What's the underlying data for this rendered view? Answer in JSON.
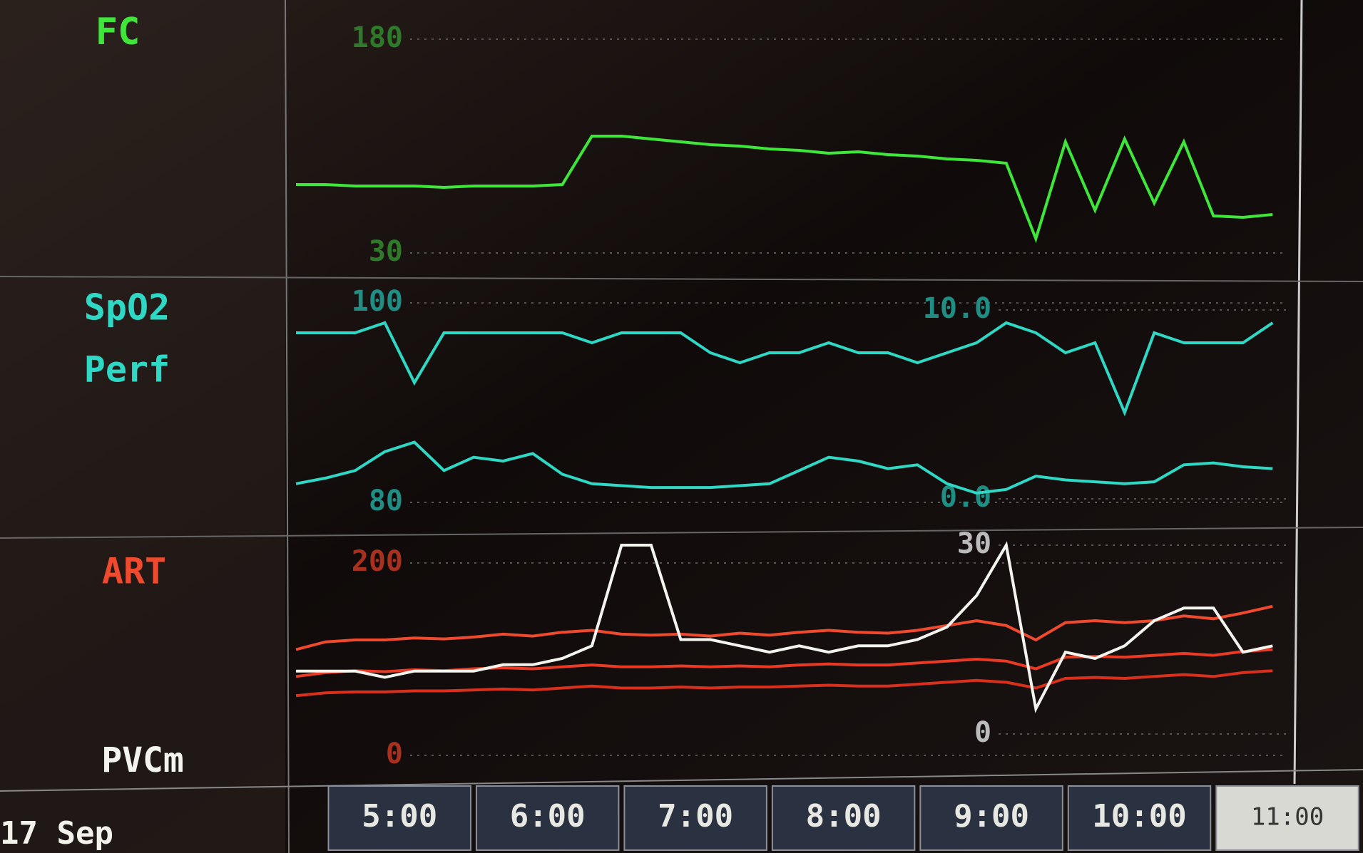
{
  "date": "17 Sep",
  "chart_data": [
    {
      "type": "line",
      "x": [
        4.3,
        4.5,
        4.7,
        4.9,
        5.1,
        5.3,
        5.5,
        5.7,
        5.9,
        6.1,
        6.3,
        6.5,
        6.7,
        6.9,
        7.1,
        7.3,
        7.5,
        7.7,
        7.9,
        8.1,
        8.3,
        8.5,
        8.7,
        8.9,
        9.1,
        9.3,
        9.5,
        9.7,
        9.9,
        10.1,
        10.3,
        10.5,
        10.7,
        10.9
      ],
      "xlim": [
        4.3,
        11.0
      ],
      "ylim": [
        30,
        180
      ],
      "yticks": [
        30,
        180
      ],
      "series": [
        {
          "name": "FC",
          "color": "#3ee63a",
          "values": [
            78,
            78,
            77,
            77,
            77,
            76,
            77,
            77,
            77,
            78,
            112,
            112,
            110,
            108,
            106,
            105,
            103,
            102,
            100,
            101,
            99,
            98,
            96,
            95,
            93,
            40,
            108,
            60,
            110,
            65,
            108,
            56,
            55,
            57
          ]
        }
      ]
    },
    {
      "type": "line",
      "x": [
        4.3,
        4.5,
        4.7,
        4.9,
        5.1,
        5.3,
        5.5,
        5.7,
        5.9,
        6.1,
        6.3,
        6.5,
        6.7,
        6.9,
        7.1,
        7.3,
        7.5,
        7.7,
        7.9,
        8.1,
        8.3,
        8.5,
        8.7,
        8.9,
        9.1,
        9.3,
        9.5,
        9.7,
        9.9,
        10.1,
        10.3,
        10.5,
        10.7,
        10.9
      ],
      "xlim": [
        4.3,
        11.0
      ],
      "ylim": [
        80,
        100
      ],
      "yticks": [
        80,
        100
      ],
      "y2lim": [
        0,
        10
      ],
      "y2ticks": [
        {
          "value": 0,
          "label": "0.0"
        },
        {
          "value": 10,
          "label": "10.0"
        }
      ],
      "series": [
        {
          "name": "SpO2",
          "color": "#2fd8c4",
          "values": [
            97,
            97,
            97,
            98,
            92,
            97,
            97,
            97,
            97,
            97,
            96,
            97,
            97,
            97,
            95,
            94,
            95,
            95,
            96,
            95,
            95,
            94,
            95,
            96,
            98,
            97,
            95,
            96,
            89,
            97,
            96,
            96,
            96,
            98
          ]
        },
        {
          "name": "Perf",
          "color": "#2fd8c4",
          "axis": "y2",
          "values": [
            0.8,
            1.1,
            1.5,
            2.5,
            3.0,
            1.5,
            2.2,
            2.0,
            2.4,
            1.3,
            0.8,
            0.7,
            0.6,
            0.6,
            0.6,
            0.7,
            0.8,
            1.5,
            2.2,
            2.0,
            1.6,
            1.8,
            0.8,
            0.3,
            0.5,
            1.2,
            1.0,
            0.9,
            0.8,
            0.9,
            1.8,
            1.9,
            1.7,
            1.6
          ]
        }
      ]
    },
    {
      "type": "line",
      "x": [
        4.3,
        4.5,
        4.7,
        4.9,
        5.1,
        5.3,
        5.5,
        5.7,
        5.9,
        6.1,
        6.3,
        6.5,
        6.7,
        6.9,
        7.1,
        7.3,
        7.5,
        7.7,
        7.9,
        8.1,
        8.3,
        8.5,
        8.7,
        8.9,
        9.1,
        9.3,
        9.5,
        9.7,
        9.9,
        10.1,
        10.3,
        10.5,
        10.7,
        10.9
      ],
      "xlim": [
        4.3,
        11.0
      ],
      "xticks": [
        {
          "value": 5,
          "label": "5:00"
        },
        {
          "value": 6,
          "label": "6:00"
        },
        {
          "value": 7,
          "label": "7:00"
        },
        {
          "value": 8,
          "label": "8:00"
        },
        {
          "value": 9,
          "label": "9:00"
        },
        {
          "value": 10,
          "label": "10:00"
        },
        {
          "value": 11,
          "label": "11:00"
        }
      ],
      "ylim": [
        0,
        200
      ],
      "yticks": [
        0,
        200
      ],
      "y2lim": [
        0,
        30
      ],
      "y2ticks": [
        0,
        30
      ],
      "series": [
        {
          "name": "ART",
          "color": "#f04a2e",
          "values": [
            110,
            118,
            120,
            120,
            122,
            121,
            123,
            126,
            124,
            128,
            130,
            126,
            125,
            126,
            124,
            127,
            125,
            128,
            130,
            128,
            127,
            130,
            135,
            140,
            135,
            120,
            138,
            140,
            138,
            140,
            145,
            142,
            148,
            155
          ]
        },
        {
          "color": "#e83a24",
          "values": [
            82,
            86,
            88,
            87,
            89,
            88,
            90,
            91,
            90,
            92,
            94,
            92,
            92,
            93,
            92,
            93,
            92,
            94,
            95,
            94,
            94,
            96,
            98,
            100,
            98,
            90,
            102,
            103,
            102,
            104,
            106,
            104,
            108,
            110
          ]
        },
        {
          "color": "#d8301c",
          "values": [
            62,
            65,
            66,
            66,
            67,
            67,
            68,
            69,
            68,
            70,
            72,
            70,
            70,
            71,
            70,
            71,
            71,
            72,
            73,
            72,
            72,
            74,
            76,
            78,
            76,
            70,
            80,
            81,
            80,
            82,
            84,
            82,
            86,
            88
          ]
        },
        {
          "name": "PVCm",
          "color": "#f4f4ee",
          "axis": "y2",
          "values": [
            10,
            10,
            10,
            9,
            10,
            10,
            10,
            11,
            11,
            12,
            14,
            30,
            30,
            15,
            15,
            14,
            13,
            14,
            13,
            14,
            14,
            15,
            17,
            22,
            30,
            4,
            13,
            12,
            14,
            18,
            20,
            20,
            13,
            14
          ]
        }
      ]
    }
  ]
}
